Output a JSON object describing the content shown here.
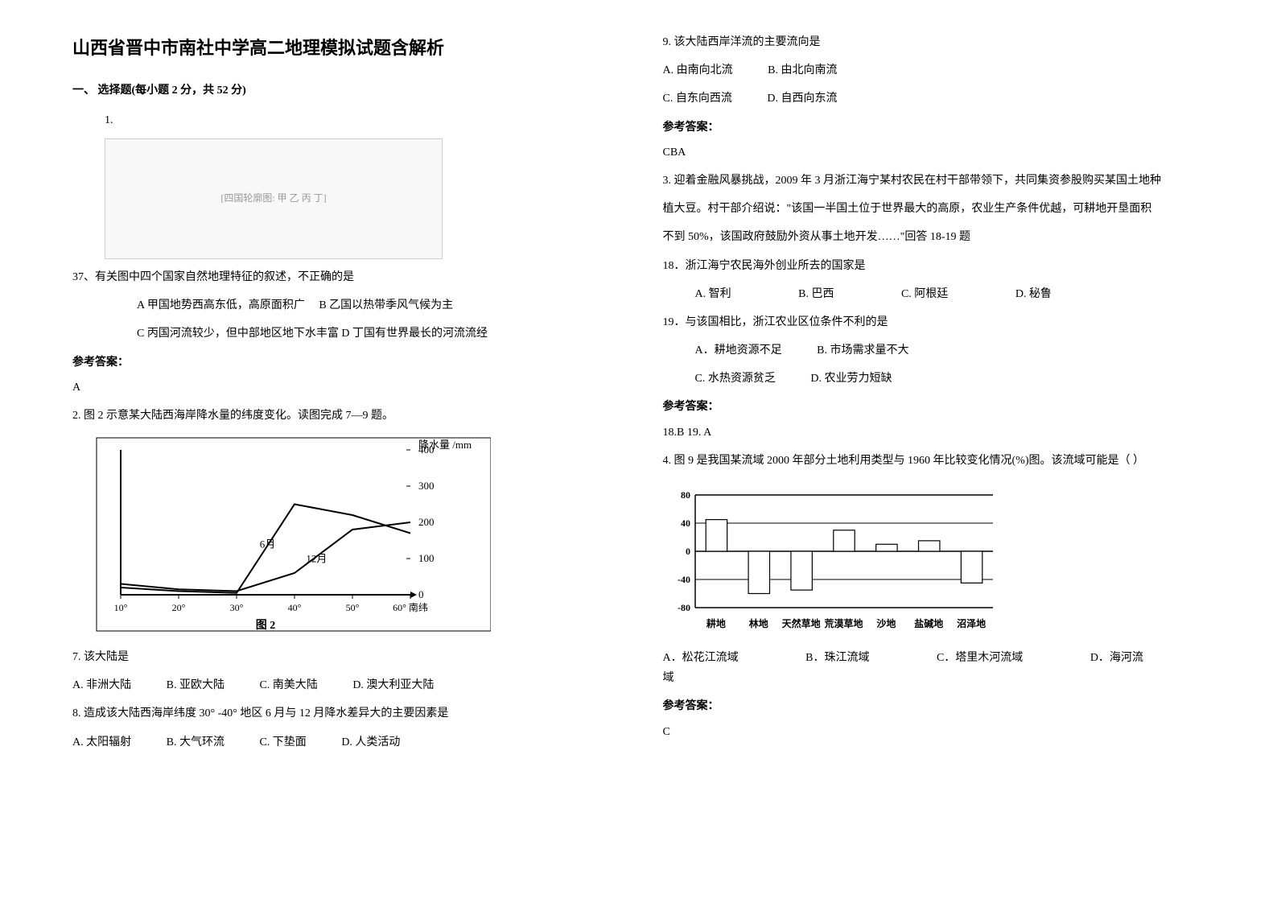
{
  "left": {
    "title": "山西省晋中市南社中学高二地理模拟试题含解析",
    "section1": "一、 选择题(每小题 2 分，共 52 分)",
    "q1_num": "1.",
    "fig1_caption": "[四国轮廓图: 甲 乙 丙 丁]",
    "q37_stem": "37、有关图中四个国家自然地理特征的叙述，不正确的是",
    "q37_optA": "A   甲国地势西高东低，高原面积广",
    "q37_optB": "B   乙国以热带季风气候为主",
    "q37_optC": "C 丙国河流较少，但中部地区地下水丰富  D 丁国有世界最长的河流流经",
    "ans_label": "参考答案：",
    "q37_ans": "A",
    "q2_stem": "2. 图 2 示意某大陆西海岸降水量的纬度变化。读图完成 7—9 题。",
    "fig2": {
      "type": "line",
      "title": "图 2",
      "x_axis_ticks": [
        "10°",
        "20°",
        "30°",
        "40°",
        "50°",
        "60° 南纬"
      ],
      "y_label": "降水量 /mm",
      "y_ticks": [
        0,
        100,
        200,
        300,
        400
      ],
      "lines": [
        "6月",
        "12月"
      ]
    },
    "q7_stem": "7. 该大陆是",
    "q7_opts": {
      "A": "A. 非洲大陆",
      "B": "B. 亚欧大陆",
      "C": "C. 南美大陆",
      "D": "D. 澳大利亚大陆"
    },
    "q8_stem": "8. 造成该大陆西海岸纬度 30° -40° 地区 6 月与 12 月降水差异大的主要因素是",
    "q8_opts": {
      "A": "A. 太阳辐射",
      "B": "B. 大气环流",
      "C": "C. 下垫面",
      "D": "D. 人类活动"
    }
  },
  "right": {
    "q9_stem": "9. 该大陆西岸洋流的主要流向是",
    "q9_opts_row1": {
      "A": "A. 由南向北流",
      "B": "B. 由北向南流"
    },
    "q9_opts_row2": {
      "C": "C. 自东向西流",
      "D": "D. 自西向东流"
    },
    "ans_label": "参考答案：",
    "ans_cba": "CBA",
    "q3_stem_a": "3. 迎着金融风暴挑战，2009 年 3 月浙江海宁某村农民在村干部带领下，共同集资参股购买某国土地种",
    "q3_stem_b": "植大豆。村干部介绍说：\"该国一半国土位于世界最大的高原，农业生产条件优越，可耕地开垦面积",
    "q3_stem_c": "不到 50%，该国政府鼓励外资从事土地开发……\"回答 18-19 题",
    "q18_stem": "18．浙江海宁农民海外创业所去的国家是",
    "q18_opts": {
      "A": "A.  智利",
      "B": "B. 巴西",
      "C": "C. 阿根廷",
      "D": "D.  秘鲁"
    },
    "q19_stem": "19．与该国相比，浙江农业区位条件不利的是",
    "q19_opts_row1": {
      "A": "A．耕地资源不足",
      "B": "B.  市场需求量不大"
    },
    "q19_opts_row2": {
      "C": "C.  水热资源贫乏",
      "D": "D.  农业劳力短缺"
    },
    "ans_1819": "18.B   19. A",
    "q4_stem": "4. 图 9 是我国某流域 2000 年部分土地利用类型与 1960 年比较变化情况(%)图。该流域可能是（      ）",
    "chart": {
      "type": "bar",
      "y_ticks": [
        -80,
        -40,
        0,
        40,
        80
      ],
      "categories": [
        "耕地",
        "林地",
        "天然草地",
        "荒漠草地",
        "沙地",
        "盐碱地",
        "沼泽地"
      ],
      "values": [
        45,
        -60,
        -55,
        30,
        10,
        15,
        -45
      ],
      "bar_color": "#ffffff",
      "bar_border": "#000000",
      "axis_color": "#000000",
      "grid_color": "#000000",
      "bar_width_ratio": 0.5,
      "fontsize_tick": 12,
      "fontsize_label": 12
    },
    "q4_opts": {
      "A": "A．松花江流域",
      "B": "B．珠江流域",
      "C": "C．塔里木河流域",
      "D": "D．海河流域"
    },
    "q4_ans": "C"
  }
}
